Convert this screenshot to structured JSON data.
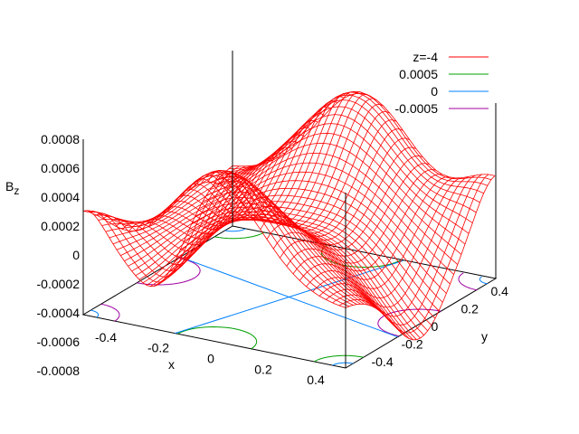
{
  "chart_data": {
    "type": "surface3d",
    "zlabel_main": "B",
    "zlabel_sub": "z",
    "xlabel": "x",
    "ylabel": "y",
    "x_ticks": [
      "-0.4",
      "-0.2",
      "0",
      "0.2",
      "0.4"
    ],
    "y_ticks": [
      "-0.4",
      "-0.2",
      "0",
      "0.2",
      "0.4"
    ],
    "z_ticks": [
      "0.0008",
      "0.0006",
      "0.0004",
      "0.0002",
      "0",
      "-0.0002",
      "-0.0004",
      "-0.0006",
      "-0.0008"
    ],
    "xlim": [
      -0.5,
      0.5
    ],
    "ylim": [
      -0.5,
      0.5
    ],
    "zlim": [
      -0.0008,
      0.0008
    ],
    "legend_position": "top-right",
    "series": [
      {
        "name": "z=-4",
        "kind": "surface",
        "color": "#ff0000"
      },
      {
        "name": "0.0005",
        "kind": "contour",
        "level": 0.0005,
        "color": "#00a000"
      },
      {
        "name": "0",
        "kind": "contour",
        "level": 0,
        "color": "#0080ff"
      },
      {
        "name": "-0.0005",
        "kind": "contour",
        "level": -0.0005,
        "color": "#a000a0"
      }
    ]
  }
}
